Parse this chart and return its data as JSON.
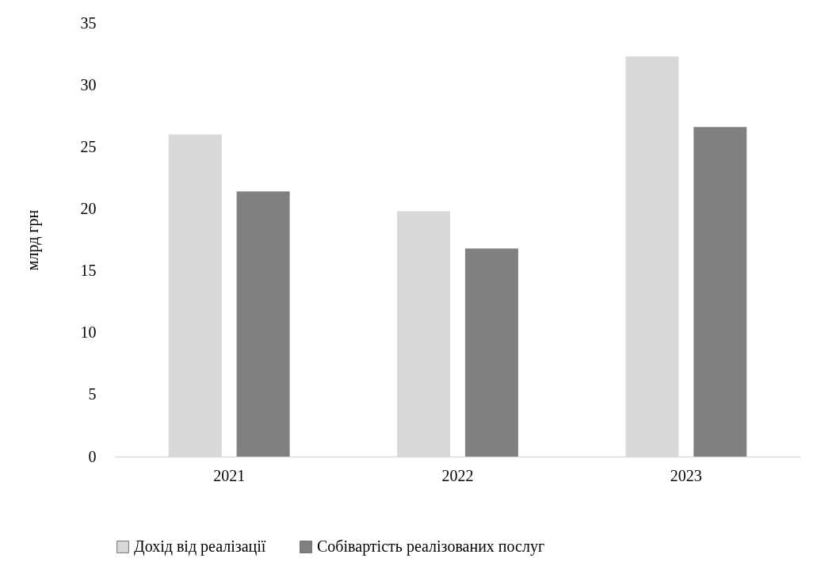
{
  "chart_data": {
    "type": "bar",
    "ylabel": "млрд грн",
    "categories": [
      "2021",
      "2022",
      "2023"
    ],
    "series": [
      {
        "name": "Дохід від реалізації",
        "color": "#d9d9d9",
        "values": [
          26.0,
          19.8,
          32.3
        ]
      },
      {
        "name": "Собівартість реалізованих послуг",
        "color": "#808080",
        "values": [
          21.4,
          16.8,
          26.6
        ]
      }
    ],
    "ylim": [
      0,
      35
    ],
    "yticks": [
      0,
      5,
      10,
      15,
      20,
      25,
      30,
      35
    ],
    "grid": false,
    "legend": "bottom"
  }
}
